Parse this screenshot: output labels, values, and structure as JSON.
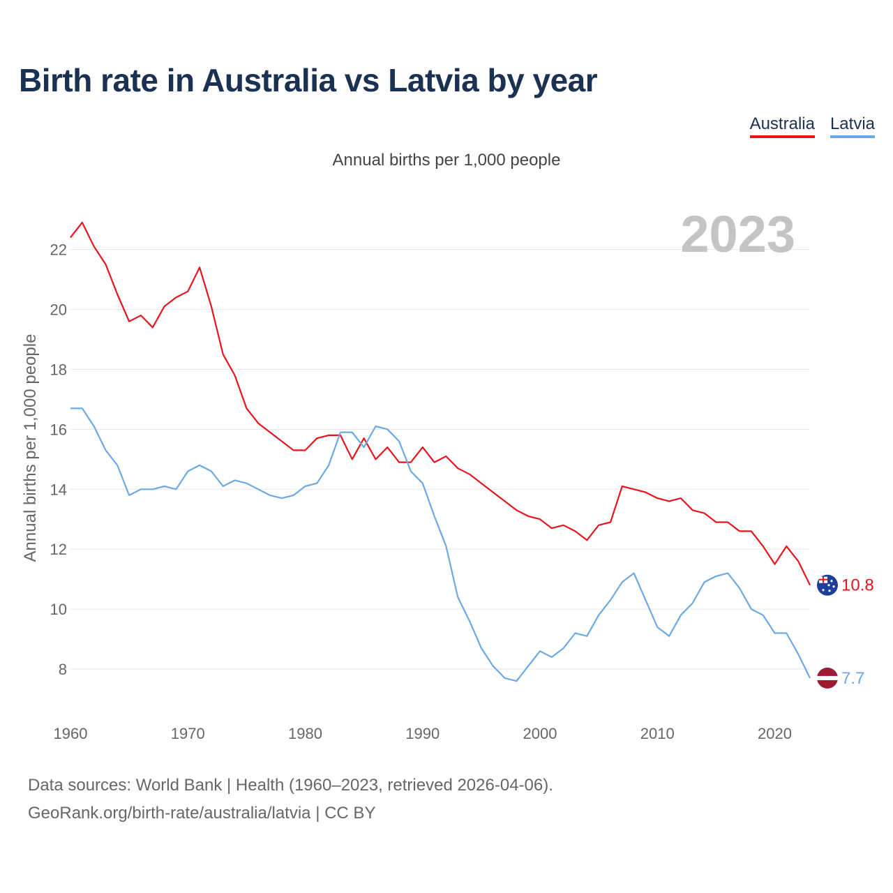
{
  "title": "Birth rate in Australia vs Latvia by year",
  "subtitle": "Annual births per 1,000 people",
  "legend": {
    "australia": "Australia",
    "latvia": "Latvia"
  },
  "colors": {
    "australia": "#e8131b",
    "latvia": "#6aa9e5",
    "title": "#1b3151"
  },
  "footer": {
    "line1": "Data sources: World Bank | Health (1960–2023, retrieved 2026-04-06).",
    "line2": "GeoRank.org/birth-rate/australia/latvia | CC BY"
  },
  "chart_data": {
    "type": "line",
    "title": "Birth rate in Australia vs Latvia by year",
    "ylabel": "Annual births per 1,000 people",
    "xlabel": "",
    "year_label": "2023",
    "xlim": [
      1960,
      2023
    ],
    "ylim": [
      7,
      23.2
    ],
    "x_ticks": [
      1960,
      1970,
      1980,
      1990,
      2000,
      2010,
      2020
    ],
    "y_ticks": [
      8,
      10,
      12,
      14,
      16,
      18,
      20,
      22
    ],
    "grid": true,
    "legend_position": "top-right",
    "x": [
      1960,
      1961,
      1962,
      1963,
      1964,
      1965,
      1966,
      1967,
      1968,
      1969,
      1970,
      1971,
      1972,
      1973,
      1974,
      1975,
      1976,
      1977,
      1978,
      1979,
      1980,
      1981,
      1982,
      1983,
      1984,
      1985,
      1986,
      1987,
      1988,
      1989,
      1990,
      1991,
      1992,
      1993,
      1994,
      1995,
      1996,
      1997,
      1998,
      1999,
      2000,
      2001,
      2002,
      2003,
      2004,
      2005,
      2006,
      2007,
      2008,
      2009,
      2010,
      2011,
      2012,
      2013,
      2014,
      2015,
      2016,
      2017,
      2018,
      2019,
      2020,
      2021,
      2022,
      2023
    ],
    "series": [
      {
        "name": "Australia",
        "end_label": "10.8",
        "values": [
          22.4,
          22.9,
          22.1,
          21.5,
          20.5,
          19.6,
          19.8,
          19.4,
          20.1,
          20.4,
          20.6,
          21.4,
          20.1,
          18.5,
          17.8,
          16.7,
          16.2,
          15.9,
          15.6,
          15.3,
          15.3,
          15.7,
          15.8,
          15.8,
          15.0,
          15.7,
          15.0,
          15.4,
          14.9,
          14.9,
          15.4,
          14.9,
          15.1,
          14.7,
          14.5,
          14.2,
          13.9,
          13.6,
          13.3,
          13.1,
          13.0,
          12.7,
          12.8,
          12.6,
          12.3,
          12.8,
          12.9,
          14.1,
          14.0,
          13.9,
          13.7,
          13.6,
          13.7,
          13.3,
          13.2,
          12.9,
          12.9,
          12.6,
          12.6,
          12.1,
          11.5,
          12.1,
          11.6,
          10.8
        ]
      },
      {
        "name": "Latvia",
        "end_label": "7.7",
        "values": [
          16.7,
          16.7,
          16.1,
          15.3,
          14.8,
          13.8,
          14.0,
          14.0,
          14.1,
          14.0,
          14.6,
          14.8,
          14.6,
          14.1,
          14.3,
          14.2,
          14.0,
          13.8,
          13.7,
          13.8,
          14.1,
          14.2,
          14.8,
          15.9,
          15.9,
          15.4,
          16.1,
          16.0,
          15.6,
          14.6,
          14.2,
          13.1,
          12.1,
          10.4,
          9.6,
          8.7,
          8.1,
          7.7,
          7.6,
          8.1,
          8.6,
          8.4,
          8.7,
          9.2,
          9.1,
          9.8,
          10.3,
          10.9,
          11.2,
          10.3,
          9.4,
          9.1,
          9.8,
          10.2,
          10.9,
          11.1,
          11.2,
          10.7,
          10.0,
          9.8,
          9.2,
          9.2,
          8.5,
          7.7
        ]
      }
    ]
  }
}
